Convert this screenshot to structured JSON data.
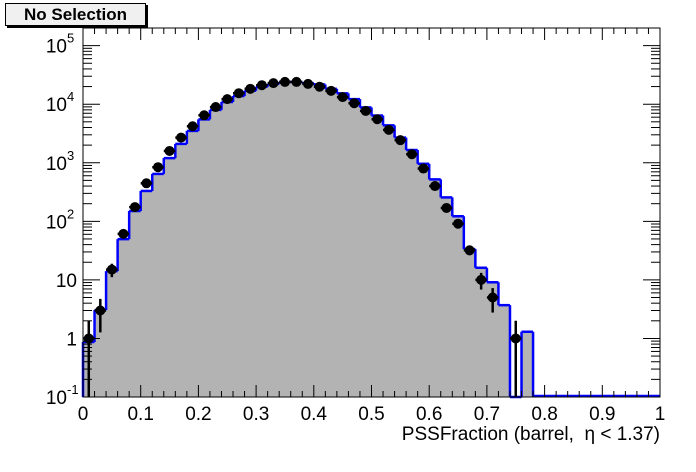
{
  "title": "No Selection",
  "chart_data": {
    "type": "histogram",
    "title": "No Selection",
    "xlabel": "PSSFraction (barrel,  η < 1.37)",
    "ylabel": "",
    "yscale": "log",
    "xlim": [
      0,
      1
    ],
    "ylim": [
      0.1,
      200000
    ],
    "bin_width": 0.02,
    "x_ticks": [
      "0",
      "0.1",
      "0.2",
      "0.3",
      "0.4",
      "0.5",
      "0.6",
      "0.7",
      "0.8",
      "0.9",
      "1"
    ],
    "y_ticks": [
      {
        "base": "10",
        "exp": "-1"
      },
      {
        "base": "1",
        "exp": ""
      },
      {
        "base": "10",
        "exp": ""
      },
      {
        "base": "10",
        "exp": "2"
      },
      {
        "base": "10",
        "exp": "3"
      },
      {
        "base": "10",
        "exp": "4"
      },
      {
        "base": "10",
        "exp": "5"
      }
    ],
    "series": [
      {
        "name": "histogram (filled)",
        "style": "step",
        "fill": "#b3b3b3",
        "line": "#0000ff",
        "bin_low_edges": [
          0,
          0.02,
          0.04,
          0.06,
          0.08,
          0.1,
          0.12,
          0.14,
          0.16,
          0.18,
          0.2,
          0.22,
          0.24,
          0.26,
          0.28,
          0.3,
          0.32,
          0.34,
          0.36,
          0.38,
          0.4,
          0.42,
          0.44,
          0.46,
          0.48,
          0.5,
          0.52,
          0.54,
          0.56,
          0.58,
          0.6,
          0.62,
          0.64,
          0.66,
          0.68,
          0.7,
          0.72,
          0.74,
          0.76
        ],
        "values": [
          0.87,
          3.05,
          14.1,
          49.6,
          150,
          330,
          645,
          1200,
          2100,
          3500,
          5500,
          8000,
          10900,
          13800,
          17000,
          19900,
          22200,
          24000,
          24000,
          22900,
          21700,
          18300,
          15300,
          12200,
          8800,
          6400,
          4350,
          2690,
          1650,
          960,
          520,
          256,
          122,
          33.5,
          16.1,
          9.1,
          3.7,
          0,
          1.3
        ]
      },
      {
        "name": "data points",
        "style": "markers",
        "color": "#000000",
        "x": [
          0.01,
          0.03,
          0.05,
          0.07,
          0.09,
          0.11,
          0.13,
          0.15,
          0.17,
          0.19,
          0.21,
          0.23,
          0.25,
          0.27,
          0.29,
          0.31,
          0.33,
          0.35,
          0.37,
          0.39,
          0.41,
          0.43,
          0.45,
          0.47,
          0.49,
          0.51,
          0.53,
          0.55,
          0.57,
          0.59,
          0.61,
          0.63,
          0.65,
          0.67,
          0.69,
          0.71,
          0.75
        ],
        "values": [
          1,
          3,
          15,
          61,
          175,
          446,
          839,
          1590,
          2690,
          4200,
          6470,
          8940,
          12200,
          15400,
          18300,
          21100,
          22900,
          24000,
          24000,
          22200,
          19900,
          16900,
          13200,
          10400,
          7680,
          5530,
          3640,
          2430,
          1400,
          796,
          400,
          169,
          91,
          32,
          10,
          5,
          1
        ]
      }
    ]
  }
}
